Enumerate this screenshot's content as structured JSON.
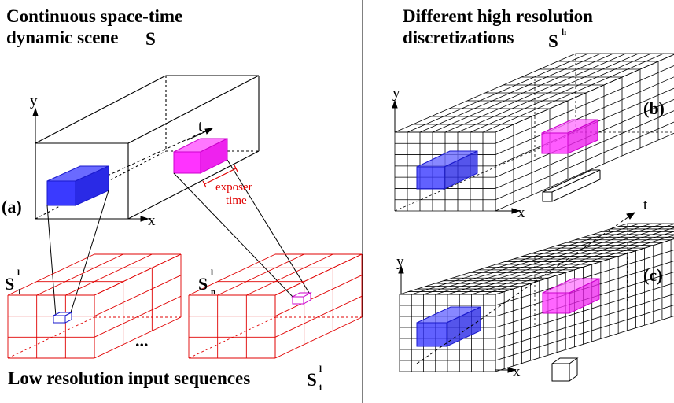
{
  "left_panel": {
    "title_line1": "Continuous space-time",
    "title_line2": "dynamic scene",
    "title_symbol": "S",
    "panel_label": "(a)",
    "axes": {
      "y": "y",
      "x": "x",
      "t": "t"
    },
    "annotation_line1": "exposer",
    "annotation_line2": "time",
    "seq_first_base": "S",
    "seq_first_sup": "l",
    "seq_first_sub": "1",
    "seq_last_base": "S",
    "seq_last_sup": "l",
    "seq_last_sub": "n",
    "ellipsis": "...",
    "bottom_caption": "Low resolution input sequences",
    "bottom_symbol_base": "S",
    "bottom_symbol_sup": "l",
    "bottom_symbol_sub": "i"
  },
  "right_panel": {
    "title_line1": "Different high resolution",
    "title_line2": "discretizations",
    "title_symbol_base": "S",
    "title_symbol_sup": "h",
    "label_b": "(b)",
    "label_c": "(c)",
    "axes_b": {
      "y": "y",
      "x": "x"
    },
    "axes_c": {
      "y": "y",
      "x": "x",
      "t": "t"
    }
  },
  "colors": {
    "line": "#000000",
    "grid_red": "#e00000",
    "blue_fill": "#3a3aff",
    "blue_edge": "#1a1acc",
    "magenta_fill": "#ff33ff",
    "magenta_edge": "#cc00cc",
    "annotation": "#e00000"
  }
}
